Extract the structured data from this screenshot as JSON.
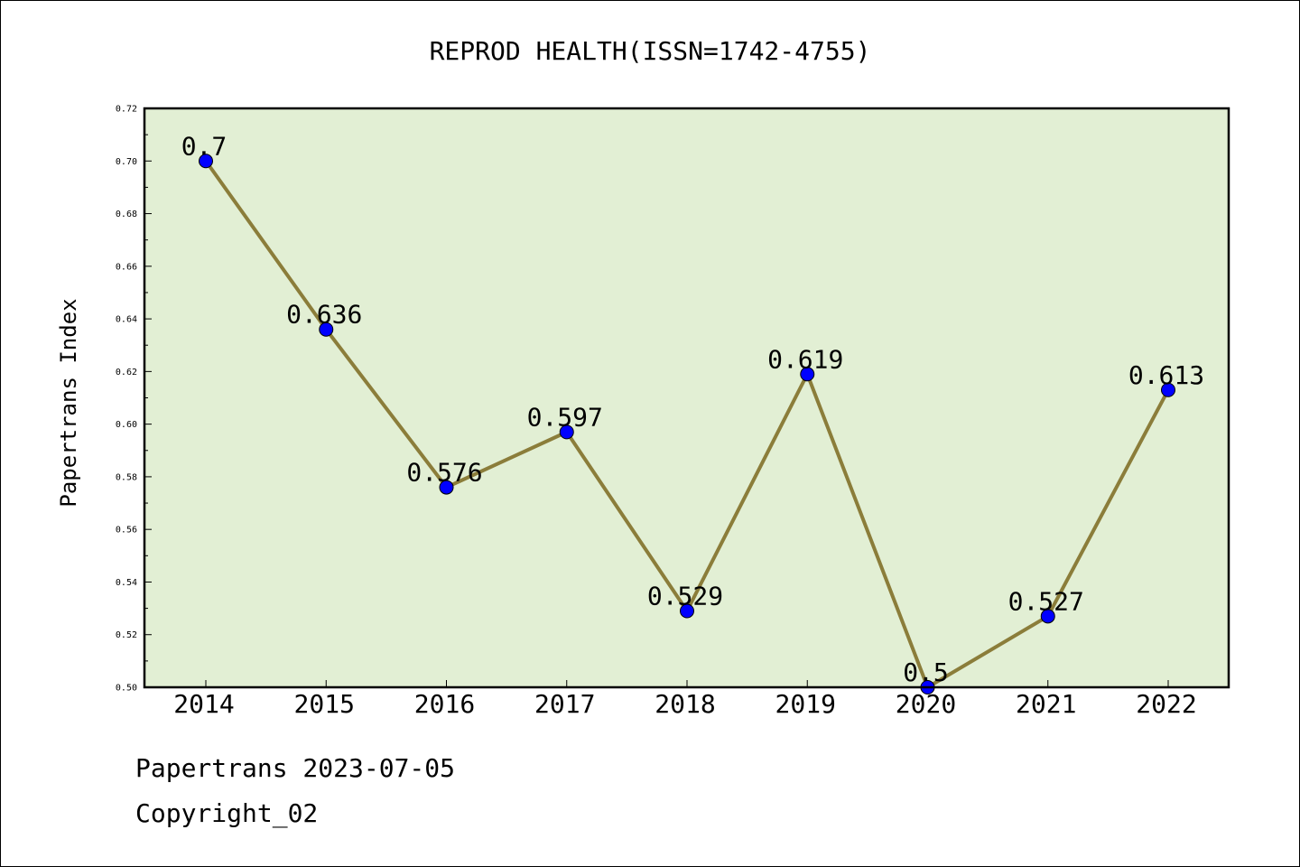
{
  "chart_data": {
    "type": "line",
    "title": "REPROD HEALTH(ISSN=1742-4755)",
    "ylabel": "Papertrans Index",
    "xlabel": "",
    "categories": [
      "2014",
      "2015",
      "2016",
      "2017",
      "2018",
      "2019",
      "2020",
      "2021",
      "2022"
    ],
    "values": [
      0.7,
      0.636,
      0.576,
      0.597,
      0.529,
      0.619,
      0.5,
      0.527,
      0.613
    ],
    "value_labels": [
      "0.7",
      "0.636",
      "0.576",
      "0.597",
      "0.529",
      "0.619",
      "0.5",
      "0.527",
      "0.613"
    ],
    "ylim": [
      0.5,
      0.72
    ],
    "yticks": [
      "0.50",
      "0.52",
      "0.54",
      "0.56",
      "0.58",
      "0.60",
      "0.62",
      "0.64",
      "0.66",
      "0.68",
      "0.70",
      "0.72"
    ],
    "grid": false,
    "legend": "none",
    "colors": {
      "plot_background": "#e2efd4",
      "line": "#8b7d3a",
      "marker": "#0000ff"
    }
  },
  "footer": {
    "line1": "Papertrans 2023-07-05",
    "line2": "Copyright_02"
  }
}
